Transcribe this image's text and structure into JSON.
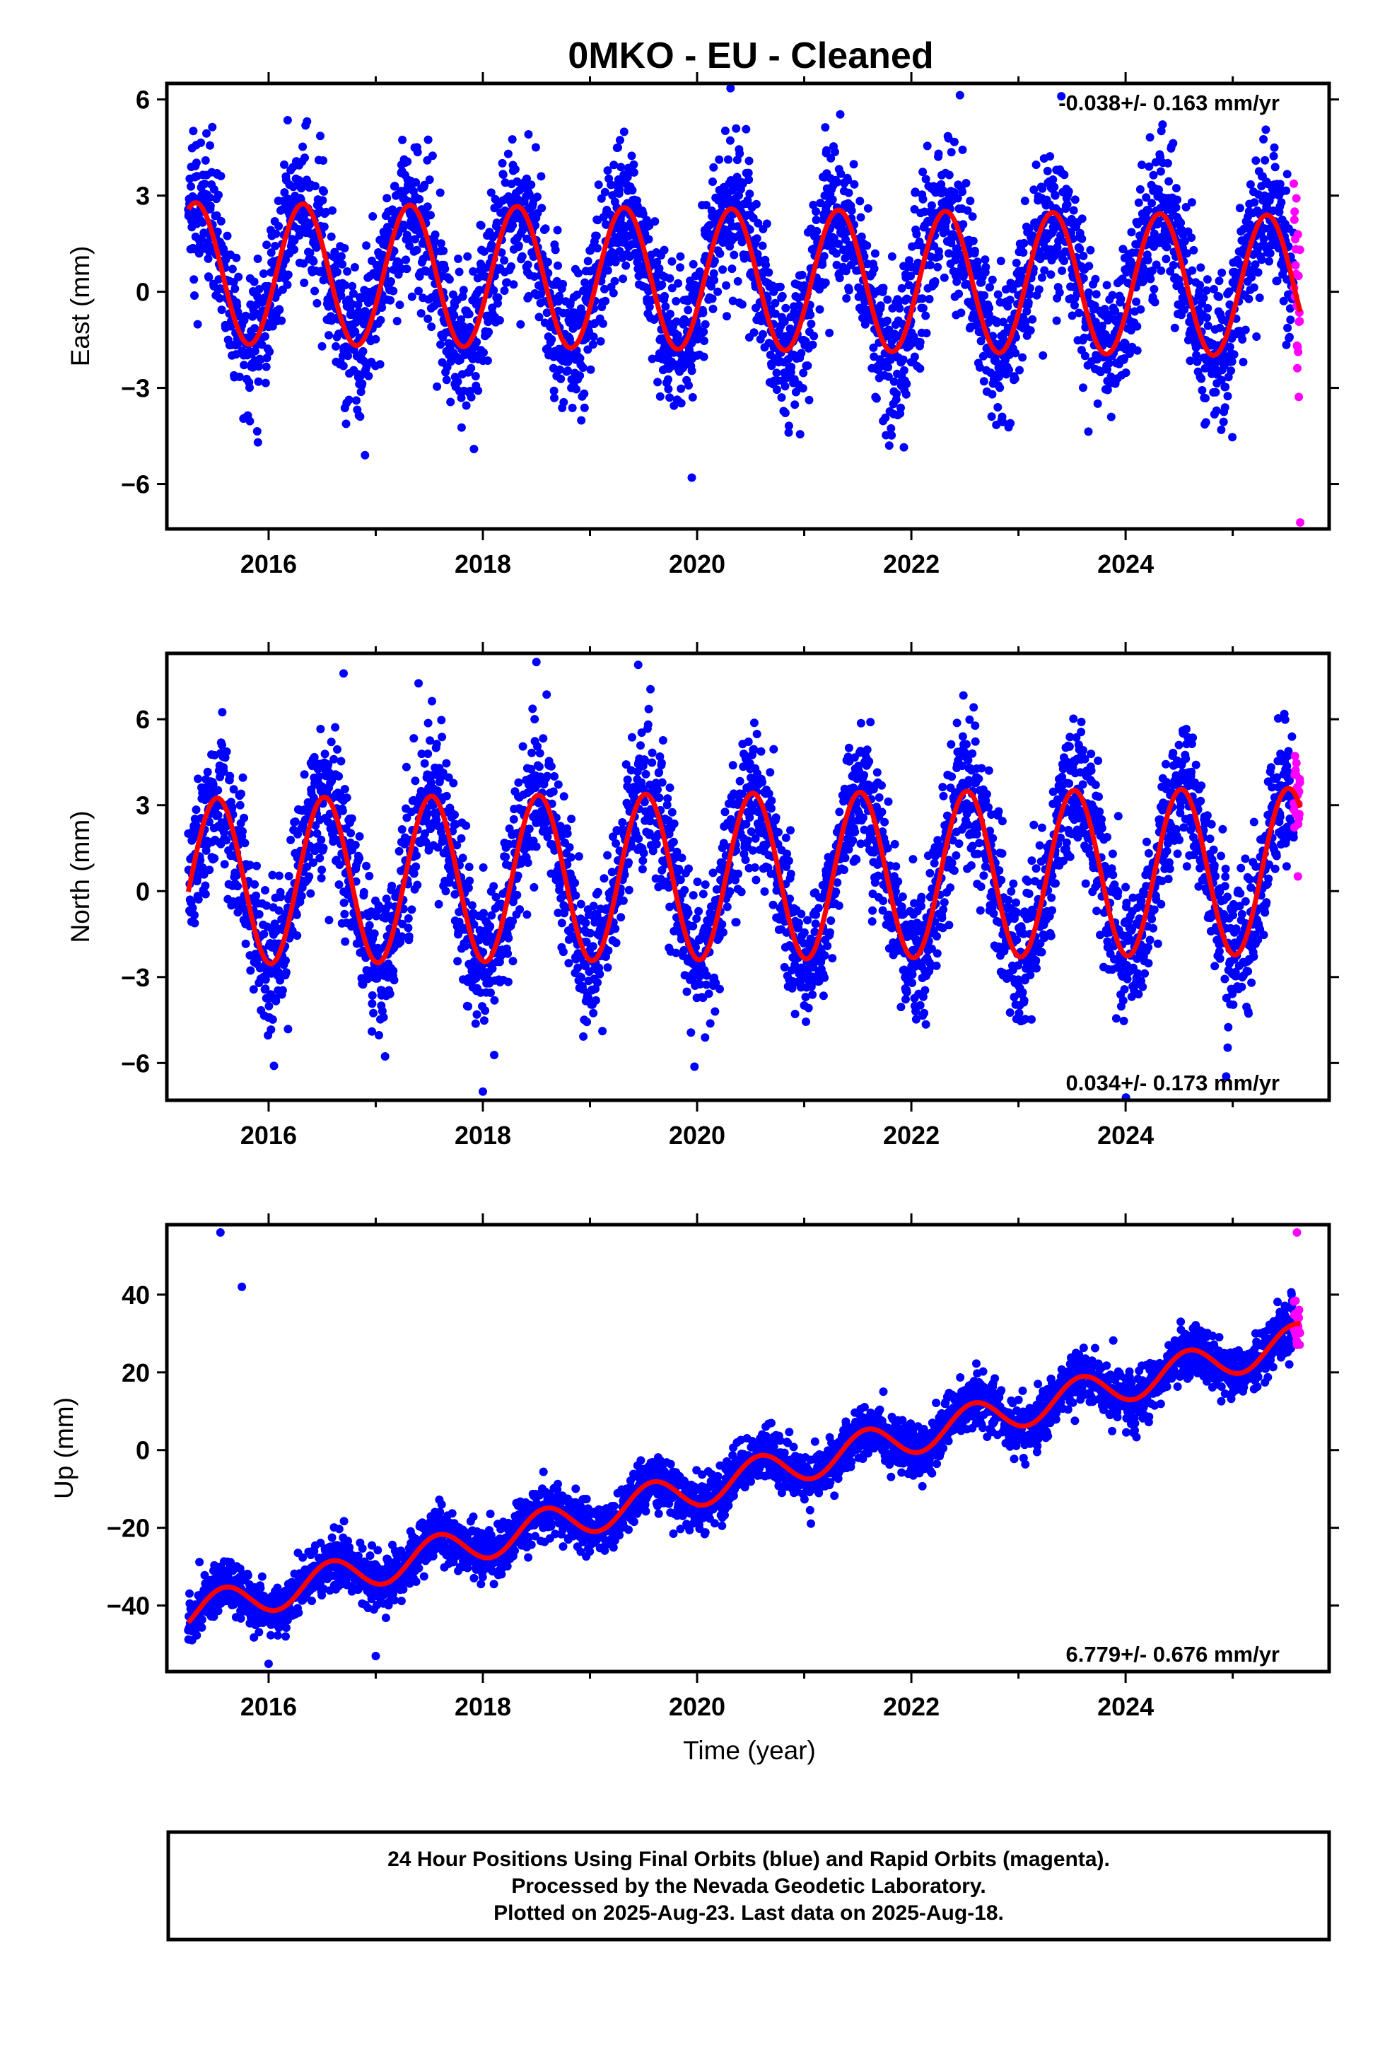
{
  "title": "0MKO  - EU - Cleaned",
  "colors": {
    "final": "#0000ff",
    "rapid": "#ff00ff",
    "fit": "#ff0000"
  },
  "xlabel": "Time (year)",
  "footer": {
    "line1": "24 Hour Positions Using Final Orbits (blue) and Rapid Orbits (magenta).",
    "line2": "Processed by the Nevada Geodetic Laboratory.",
    "line3": "Plotted on 2025-Aug-23. Last data on 2025-Aug-18."
  },
  "chart_data": [
    {
      "type": "scatter",
      "component": "east",
      "ylabel": "East (mm)",
      "rate_label": "-0.038+/- 0.163 mm/yr",
      "xlim": [
        2015.05,
        2025.9
      ],
      "ylim": [
        -7.4,
        6.5
      ],
      "xticks": [
        "2016",
        "2018",
        "2020",
        "2022",
        "2024"
      ],
      "xtick_values": [
        2016,
        2018,
        2020,
        2022,
        2024
      ],
      "yticks": [
        "6",
        "3",
        "0",
        "−3",
        "−6"
      ],
      "ytick_values": [
        6,
        3,
        0,
        -3,
        -6
      ],
      "data_span": [
        2015.25,
        2025.63
      ],
      "model": {
        "rate_mm_per_yr": -0.038,
        "offset_mm": 0.4,
        "annual_amplitude_mm": 2.2,
        "annual_peak_frac_of_year": 0.32,
        "scatter_sd_mm": 1.15
      },
      "series": [
        {
          "name": "Final Orbits",
          "color": "#0000ff"
        },
        {
          "name": "Rapid Orbits",
          "color": "#ff00ff",
          "x_range": [
            2025.57,
            2025.63
          ]
        },
        {
          "name": "Fit",
          "color": "#ff0000"
        }
      ],
      "outliers": [
        [
          2019.95,
          -5.8
        ],
        [
          2015.9,
          -4.7
        ],
        [
          2016.9,
          -5.1
        ],
        [
          2023.4,
          6.1
        ],
        [
          2025.63,
          -7.2
        ]
      ]
    },
    {
      "type": "scatter",
      "component": "north",
      "ylabel": "North (mm)",
      "rate_label": "0.034+/- 0.173 mm/yr",
      "xlim": [
        2015.05,
        2025.9
      ],
      "ylim": [
        -7.3,
        8.3
      ],
      "xticks": [
        "2016",
        "2018",
        "2020",
        "2022",
        "2024"
      ],
      "xtick_values": [
        2016,
        2018,
        2020,
        2022,
        2024
      ],
      "yticks": [
        "6",
        "3",
        "0",
        "−3",
        "−6"
      ],
      "ytick_values": [
        6,
        3,
        0,
        -3,
        -6
      ],
      "data_span": [
        2015.25,
        2025.63
      ],
      "model": {
        "rate_mm_per_yr": 0.034,
        "offset_mm": 0.5,
        "annual_amplitude_mm": 2.9,
        "annual_peak_frac_of_year": 0.52,
        "scatter_sd_mm": 1.25
      },
      "series": [
        {
          "name": "Final Orbits",
          "color": "#0000ff"
        },
        {
          "name": "Rapid Orbits",
          "color": "#ff00ff",
          "x_range": [
            2025.57,
            2025.63
          ]
        },
        {
          "name": "Fit",
          "color": "#ff0000"
        }
      ],
      "outliers": [
        [
          2018.0,
          -7.0
        ],
        [
          2018.5,
          8.0
        ],
        [
          2019.45,
          7.9
        ],
        [
          2016.7,
          7.6
        ],
        [
          2016.05,
          -6.1
        ]
      ]
    },
    {
      "type": "scatter",
      "component": "up",
      "ylabel": "Up (mm)",
      "rate_label": "6.779+/- 0.676 mm/yr",
      "xlim": [
        2015.05,
        2025.9
      ],
      "ylim": [
        -57,
        58
      ],
      "xticks": [
        "2016",
        "2018",
        "2020",
        "2022",
        "2024"
      ],
      "xtick_values": [
        2016,
        2018,
        2020,
        2022,
        2024
      ],
      "yticks": [
        "40",
        "20",
        "0",
        "−20",
        "−40"
      ],
      "ytick_values": [
        40,
        20,
        0,
        -20,
        -40
      ],
      "data_span": [
        2015.25,
        2025.63
      ],
      "model": {
        "rate_mm_per_yr": 6.779,
        "offset_mm": -10,
        "annual_amplitude_mm": 4.6,
        "annual_peak_frac_of_year": 0.58,
        "scatter_sd_mm": 3.4
      },
      "series": [
        {
          "name": "Final Orbits",
          "color": "#0000ff"
        },
        {
          "name": "Rapid Orbits",
          "color": "#ff00ff",
          "x_range": [
            2025.57,
            2025.63
          ]
        },
        {
          "name": "Fit",
          "color": "#ff0000"
        }
      ],
      "outliers": [
        [
          2015.55,
          56
        ],
        [
          2015.75,
          42
        ],
        [
          2016.0,
          -55
        ],
        [
          2017.0,
          -53
        ],
        [
          2025.6,
          56
        ]
      ]
    }
  ]
}
